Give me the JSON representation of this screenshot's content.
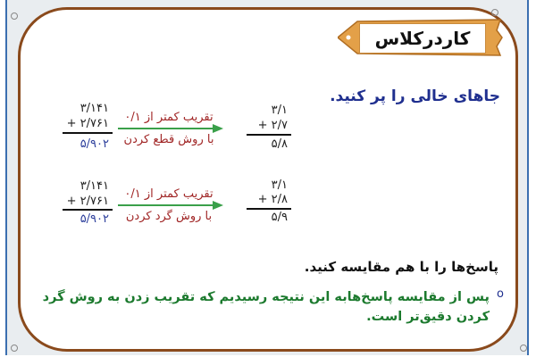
{
  "header": {
    "title": "کاردرکلاس"
  },
  "instruction": "جاهای خالی را پر کنید.",
  "problems": [
    {
      "left": {
        "a": "۳/۱۴۱",
        "b": "+ ۲/۷۶۱",
        "sum": "۵/۹۰۲"
      },
      "label_top": "تقریب کمتر از ۰/۱",
      "label_bottom": "با روش قطع کردن",
      "right": {
        "a": "۳/۱",
        "b": "+ ۲/۷",
        "sum": "۵/۸"
      }
    },
    {
      "left": {
        "a": "۳/۱۴۱",
        "b": "+ ۲/۷۶۱",
        "sum": "۵/۹۰۲"
      },
      "label_top": "تقریب کمتر از ۰/۱",
      "label_bottom": "با روش گرد کردن",
      "right": {
        "a": "۳/۱",
        "b": "+ ۲/۸",
        "sum": "۵/۹"
      }
    }
  ],
  "compare": "پاسخ‌ها را با هم مقایسه کنید.",
  "conclusion": "پس از مقایسه پاسخ‌هابه این نتیجه رسیدیم که تقریب زدن به روش گرد کردن دقیق‌تر است.",
  "bullet": "o",
  "colors": {
    "border": "#8a4a1c",
    "frame": "#3b6fb0",
    "arrow": "#3aa04a",
    "label": "#a02525",
    "result": "#2d3f9c",
    "conclusion": "#1c7a2e"
  }
}
